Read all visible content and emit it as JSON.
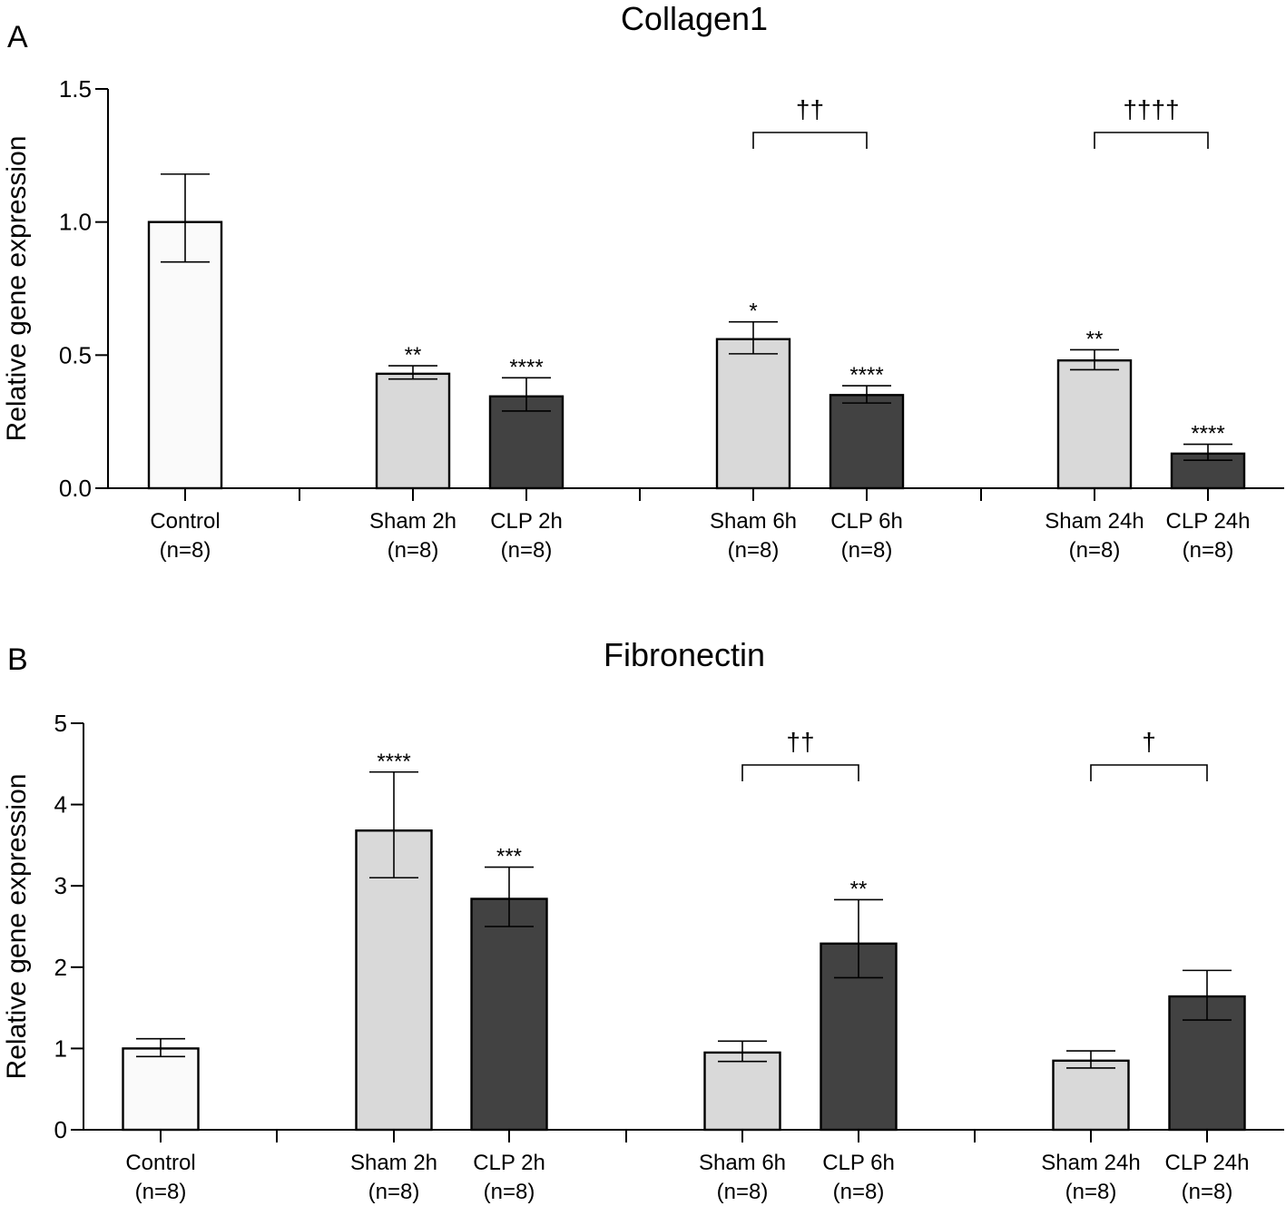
{
  "chart_data": [
    {
      "type": "bar",
      "panel": "A",
      "title": "Collagen1",
      "ylabel": "Relative gene expression",
      "ylim": [
        0,
        1.5
      ],
      "yticks": [
        "0.0",
        "0.5",
        "1.0",
        "1.5"
      ],
      "ytick_values": [
        0,
        0.5,
        1.0,
        1.5
      ],
      "bars": [
        {
          "label": "Control",
          "n": "(n=8)",
          "value": 1.0,
          "err_low": 0.85,
          "err_high": 1.18,
          "fill": "#fafafa",
          "star": ""
        },
        {
          "label": "Sham 2h",
          "n": "(n=8)",
          "value": 0.43,
          "err_low": 0.41,
          "err_high": 0.46,
          "fill": "#d9d9d9",
          "star": "**"
        },
        {
          "label": "CLP 2h",
          "n": "(n=8)",
          "value": 0.345,
          "err_low": 0.29,
          "err_high": 0.415,
          "fill": "#424242",
          "star": "****"
        },
        {
          "label": "Sham 6h",
          "n": "(n=8)",
          "value": 0.56,
          "err_low": 0.505,
          "err_high": 0.625,
          "fill": "#d9d9d9",
          "star": "*"
        },
        {
          "label": "CLP 6h",
          "n": "(n=8)",
          "value": 0.35,
          "err_low": 0.32,
          "err_high": 0.385,
          "fill": "#424242",
          "star": "****"
        },
        {
          "label": "Sham 24h",
          "n": "(n=8)",
          "value": 0.48,
          "err_low": 0.445,
          "err_high": 0.52,
          "fill": "#d9d9d9",
          "star": "**"
        },
        {
          "label": "CLP 24h",
          "n": "(n=8)",
          "value": 0.13,
          "err_low": 0.105,
          "err_high": 0.165,
          "fill": "#424242",
          "star": "****"
        }
      ],
      "brackets": [
        {
          "from": 3,
          "to": 4,
          "symbol": "††"
        },
        {
          "from": 5,
          "to": 6,
          "symbol": "††††"
        }
      ]
    },
    {
      "type": "bar",
      "panel": "B",
      "title": "Fibronectin",
      "ylabel": "Relative gene expression",
      "ylim": [
        0,
        5
      ],
      "yticks": [
        "0",
        "1",
        "2",
        "3",
        "4",
        "5"
      ],
      "ytick_values": [
        0,
        1,
        2,
        3,
        4,
        5
      ],
      "bars": [
        {
          "label": "Control",
          "n": "(n=8)",
          "value": 1.0,
          "err_low": 0.9,
          "err_high": 1.12,
          "fill": "#fafafa",
          "star": ""
        },
        {
          "label": "Sham 2h",
          "n": "(n=8)",
          "value": 3.68,
          "err_low": 3.1,
          "err_high": 4.4,
          "fill": "#d9d9d9",
          "star": "****"
        },
        {
          "label": "CLP 2h",
          "n": "(n=8)",
          "value": 2.84,
          "err_low": 2.5,
          "err_high": 3.23,
          "fill": "#424242",
          "star": "***"
        },
        {
          "label": "Sham 6h",
          "n": "(n=8)",
          "value": 0.95,
          "err_low": 0.84,
          "err_high": 1.09,
          "fill": "#d9d9d9",
          "star": ""
        },
        {
          "label": "CLP 6h",
          "n": "(n=8)",
          "value": 2.29,
          "err_low": 1.87,
          "err_high": 2.83,
          "fill": "#424242",
          "star": "**"
        },
        {
          "label": "Sham 24h",
          "n": "(n=8)",
          "value": 0.85,
          "err_low": 0.76,
          "err_high": 0.97,
          "fill": "#d9d9d9",
          "star": ""
        },
        {
          "label": "CLP 24h",
          "n": "(n=8)",
          "value": 1.64,
          "err_low": 1.35,
          "err_high": 1.96,
          "fill": "#424242",
          "star": ""
        }
      ],
      "brackets": [
        {
          "from": 3,
          "to": 4,
          "symbol": "††"
        },
        {
          "from": 5,
          "to": 6,
          "symbol": "†"
        }
      ]
    }
  ]
}
